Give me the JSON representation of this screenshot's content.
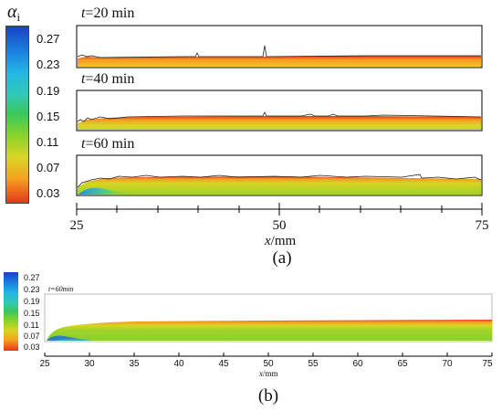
{
  "figure_a": {
    "colorbar": {
      "title_symbol": "α",
      "title_sub": "i",
      "ticks": [
        "0.27",
        "0.23",
        "0.19",
        "0.15",
        "0.11",
        "0.07",
        "0.03"
      ],
      "colors": [
        "#1a4fd6",
        "#19a6e8",
        "#2fc9b8",
        "#36c85a",
        "#8ad12a",
        "#d6d624",
        "#f0a020",
        "#e9551e"
      ]
    },
    "panels": [
      {
        "time_prefix": "t",
        "time_value": "=20 min"
      },
      {
        "time_prefix": "t",
        "time_value": "=40 min"
      },
      {
        "time_prefix": "t",
        "time_value": "=60 min"
      }
    ],
    "x_axis": {
      "ticks": [
        "25",
        "50",
        "75"
      ],
      "label_var": "x",
      "label_unit": "/mm"
    },
    "caption": "(a)"
  },
  "figure_b": {
    "colorbar": {
      "ticks": [
        "0.27",
        "0.23",
        "0.19",
        "0.15",
        "0.11",
        "0.07",
        "0.03"
      ]
    },
    "time_label": "t=60min",
    "x_axis": {
      "ticks": [
        "25",
        "30",
        "35",
        "40",
        "45",
        "50",
        "55",
        "60",
        "65",
        "70",
        "75"
      ],
      "label_var": "x",
      "label_unit": "/mm"
    },
    "caption": "(b)"
  }
}
